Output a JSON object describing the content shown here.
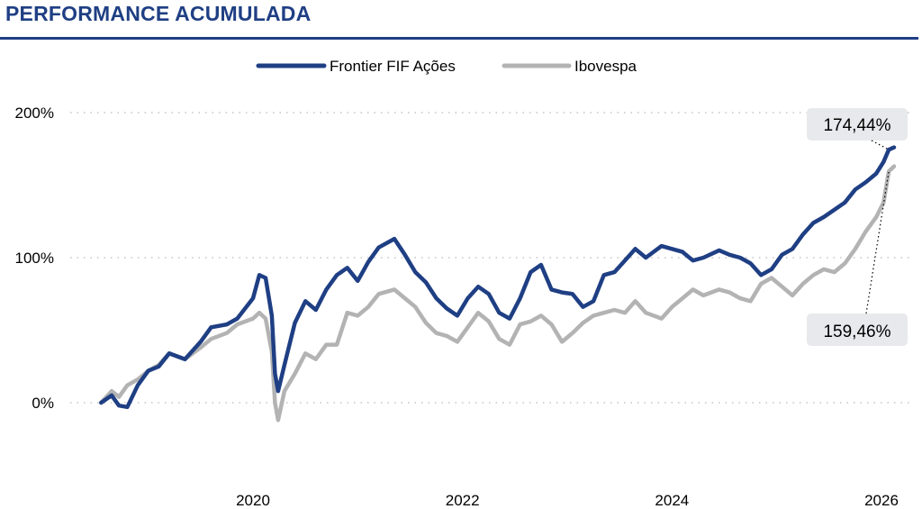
{
  "header": {
    "title": "PERFORMANCE ACUMULADA"
  },
  "chart_data": {
    "type": "line",
    "title": "PERFORMANCE ACUMULADA",
    "xlabel": "",
    "ylabel": "",
    "ylim": [
      -30,
      215
    ],
    "xlim": [
      2018.45,
      2026.35
    ],
    "y_ticks": [
      0,
      100,
      200
    ],
    "y_tick_labels": [
      "0%",
      "100%",
      "200%"
    ],
    "x_ticks": [
      2020,
      2022,
      2024,
      2026
    ],
    "x_tick_labels": [
      "2020",
      "2022",
      "2024",
      "2026"
    ],
    "grid": "horizontal dotted",
    "legend_position": "top-center",
    "series": [
      {
        "name": "Frontier FIF Ações",
        "color": "#1f3f84",
        "x": [
          2018.55,
          2018.65,
          2018.72,
          2018.8,
          2018.9,
          2019.0,
          2019.1,
          2019.2,
          2019.35,
          2019.5,
          2019.6,
          2019.75,
          2019.85,
          2020.0,
          2020.06,
          2020.12,
          2020.18,
          2020.21,
          2020.24,
          2020.3,
          2020.4,
          2020.5,
          2020.6,
          2020.7,
          2020.8,
          2020.9,
          2021.0,
          2021.1,
          2021.2,
          2021.35,
          2021.45,
          2021.55,
          2021.65,
          2021.75,
          2021.85,
          2021.95,
          2022.05,
          2022.15,
          2022.25,
          2022.35,
          2022.45,
          2022.55,
          2022.65,
          2022.75,
          2022.85,
          2022.95,
          2023.05,
          2023.15,
          2023.25,
          2023.35,
          2023.45,
          2023.55,
          2023.65,
          2023.75,
          2023.9,
          2024.0,
          2024.1,
          2024.2,
          2024.3,
          2024.45,
          2024.55,
          2024.65,
          2024.75,
          2024.85,
          2024.95,
          2025.05,
          2025.15,
          2025.25,
          2025.35,
          2025.45,
          2025.55,
          2025.65,
          2025.75,
          2025.85,
          2025.95,
          2026.02,
          2026.07,
          2026.12
        ],
        "values": [
          0,
          5,
          -2,
          -3,
          12,
          22,
          25,
          34,
          30,
          42,
          52,
          54,
          58,
          72,
          88,
          86,
          60,
          20,
          8,
          26,
          55,
          70,
          64,
          78,
          88,
          93,
          84,
          97,
          107,
          113,
          102,
          90,
          83,
          72,
          65,
          60,
          72,
          80,
          75,
          62,
          58,
          72,
          90,
          95,
          78,
          76,
          75,
          66,
          70,
          88,
          90,
          98,
          106,
          100,
          108,
          106,
          104,
          98,
          100,
          105,
          102,
          100,
          96,
          88,
          92,
          102,
          106,
          116,
          124,
          128,
          133,
          138,
          147,
          152,
          158,
          166,
          174.44,
          176
        ]
      },
      {
        "name": "Ibovespa",
        "color": "#b3b3b3",
        "x": [
          2018.55,
          2018.65,
          2018.72,
          2018.8,
          2018.9,
          2019.0,
          2019.1,
          2019.2,
          2019.35,
          2019.5,
          2019.6,
          2019.75,
          2019.85,
          2020.0,
          2020.06,
          2020.12,
          2020.18,
          2020.21,
          2020.24,
          2020.3,
          2020.4,
          2020.5,
          2020.6,
          2020.7,
          2020.8,
          2020.9,
          2021.0,
          2021.1,
          2021.2,
          2021.35,
          2021.45,
          2021.55,
          2021.65,
          2021.75,
          2021.85,
          2021.95,
          2022.05,
          2022.15,
          2022.25,
          2022.35,
          2022.45,
          2022.55,
          2022.65,
          2022.75,
          2022.85,
          2022.95,
          2023.05,
          2023.15,
          2023.25,
          2023.35,
          2023.45,
          2023.55,
          2023.65,
          2023.75,
          2023.9,
          2024.0,
          2024.1,
          2024.2,
          2024.3,
          2024.45,
          2024.55,
          2024.65,
          2024.75,
          2024.85,
          2024.95,
          2025.05,
          2025.15,
          2025.25,
          2025.35,
          2025.45,
          2025.55,
          2025.65,
          2025.75,
          2025.85,
          2025.95,
          2026.02,
          2026.07,
          2026.12
        ],
        "values": [
          0,
          8,
          4,
          12,
          16,
          22,
          26,
          34,
          30,
          38,
          44,
          48,
          54,
          58,
          62,
          58,
          35,
          0,
          -12,
          8,
          20,
          34,
          30,
          40,
          40,
          62,
          60,
          66,
          75,
          78,
          72,
          66,
          55,
          48,
          46,
          42,
          52,
          62,
          56,
          44,
          40,
          54,
          56,
          60,
          54,
          42,
          48,
          55,
          60,
          62,
          64,
          62,
          70,
          62,
          58,
          66,
          72,
          78,
          74,
          78,
          76,
          72,
          70,
          82,
          86,
          80,
          74,
          82,
          88,
          92,
          90,
          96,
          106,
          118,
          128,
          138,
          159.46,
          163
        ]
      }
    ],
    "annotations": [
      {
        "series": "Frontier FIF Ações",
        "label": "174,44%"
      },
      {
        "series": "Ibovespa",
        "label": "159,46%"
      }
    ]
  }
}
